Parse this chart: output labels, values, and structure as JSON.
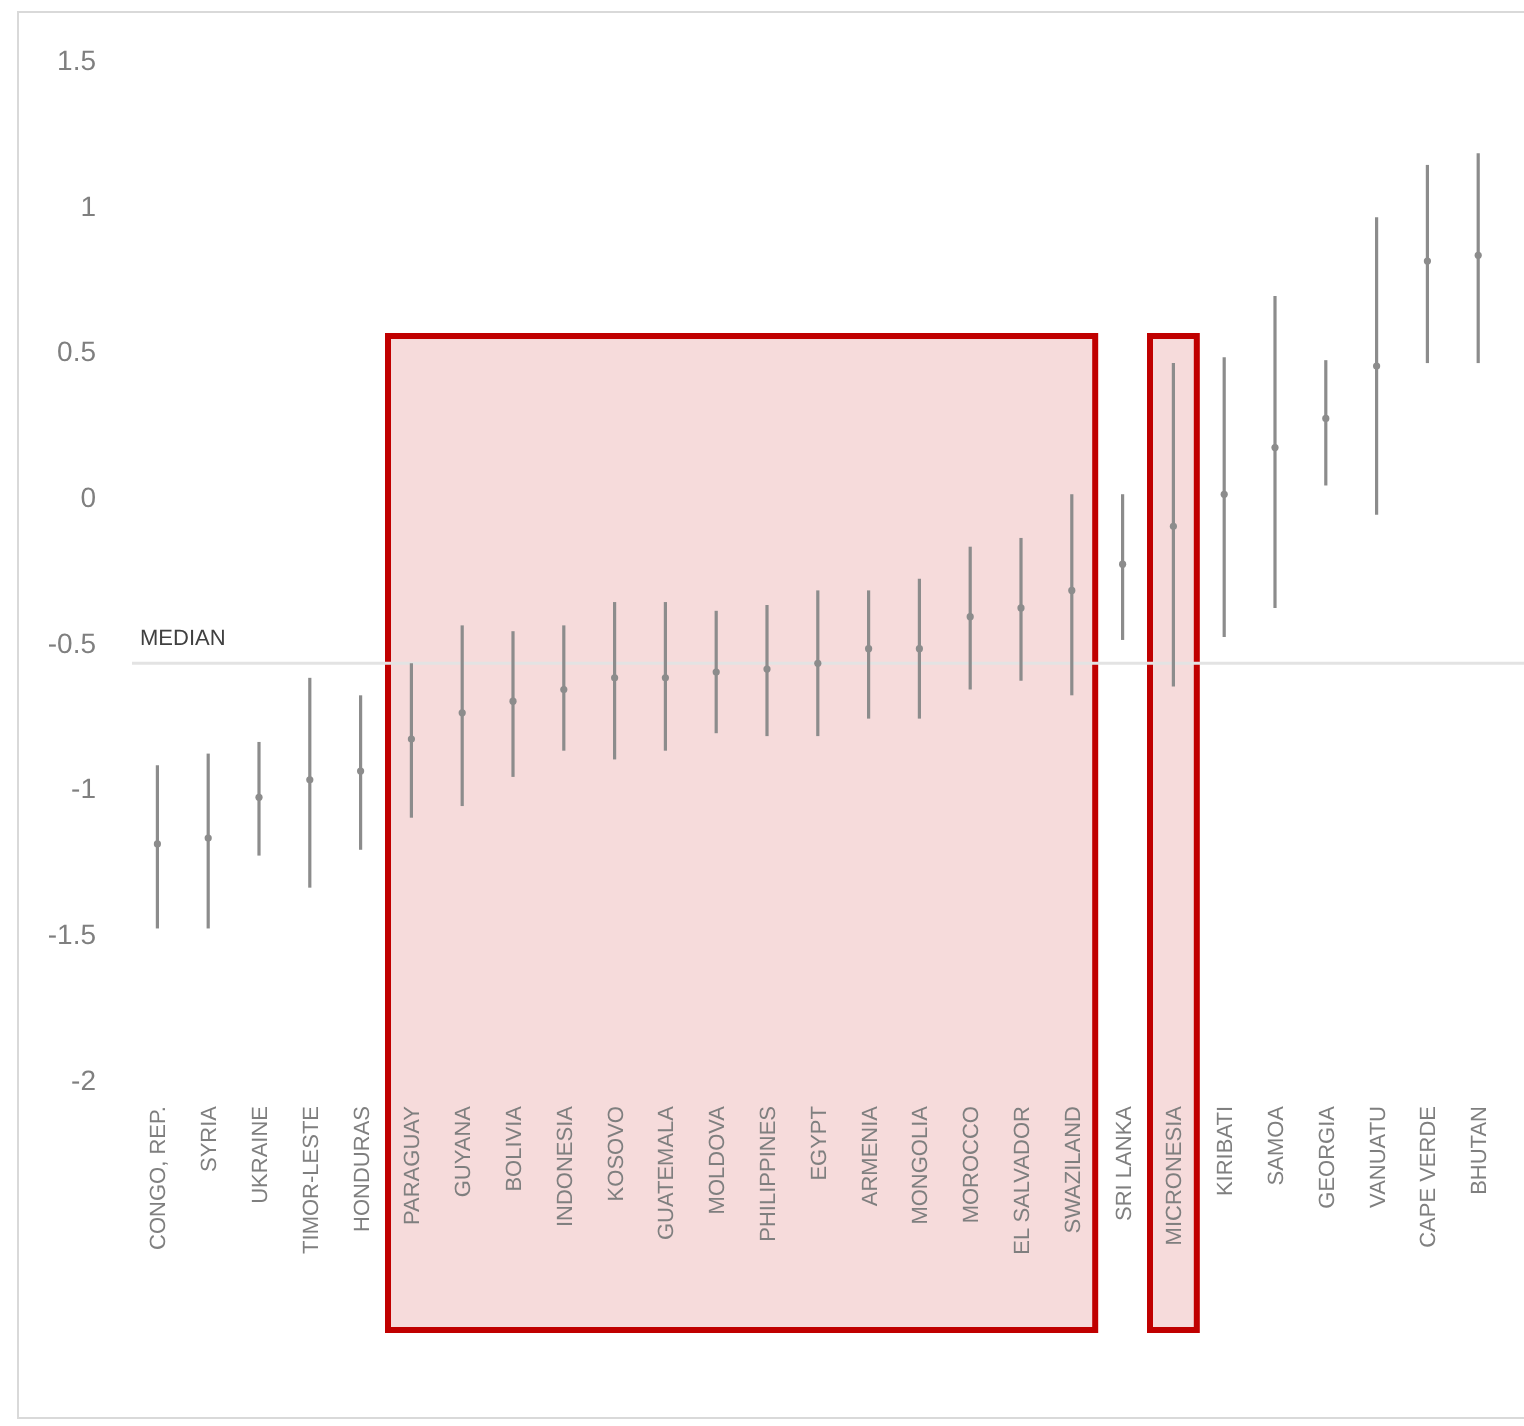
{
  "chart_data": {
    "type": "scatter",
    "categories": [
      "CONGO, REP.",
      "SYRIA",
      "UKRAINE",
      "TIMOR-LESTE",
      "HONDURAS",
      "PARAGUAY",
      "GUYANA",
      "BOLIVIA",
      "INDONESIA",
      "KOSOVO",
      "GUATEMALA",
      "MOLDOVA",
      "PHILIPPINES",
      "EGYPT",
      "ARMENIA",
      "MONGOLIA",
      "MOROCCO",
      "EL SALVADOR",
      "SWAZILAND",
      "SRI LANKA",
      "MICRONESIA",
      "KIRIBATI",
      "SAMOA",
      "GEORGIA",
      "VANUATU",
      "CAPE VERDE",
      "BHUTAN"
    ],
    "series": [
      {
        "color": "#8c8c8c",
        "values": [
          -1.19,
          -1.17,
          -1.03,
          -0.97,
          -0.94,
          -0.83,
          -0.74,
          -0.7,
          -0.66,
          -0.62,
          -0.62,
          -0.6,
          -0.59,
          -0.57,
          -0.52,
          -0.52,
          -0.41,
          -0.38,
          -0.32,
          -0.23,
          -0.1,
          0.01,
          0.17,
          0.27,
          0.45,
          0.81,
          0.83
        ],
        "errors": [
          [
            -1.48,
            -0.92
          ],
          [
            -1.48,
            -0.88
          ],
          [
            -1.23,
            -0.84
          ],
          [
            -1.34,
            -0.62
          ],
          [
            -1.21,
            -0.68
          ],
          [
            -1.1,
            -0.57
          ],
          [
            -1.06,
            -0.44
          ],
          [
            -0.96,
            -0.46
          ],
          [
            -0.87,
            -0.44
          ],
          [
            -0.9,
            -0.36
          ],
          [
            -0.87,
            -0.36
          ],
          [
            -0.81,
            -0.39
          ],
          [
            -0.82,
            -0.37
          ],
          [
            -0.82,
            -0.32
          ],
          [
            -0.76,
            -0.32
          ],
          [
            -0.76,
            -0.28
          ],
          [
            -0.66,
            -0.17
          ],
          [
            -0.63,
            -0.14
          ],
          [
            -0.68,
            0.01
          ],
          [
            -0.49,
            0.01
          ],
          [
            -0.65,
            0.46
          ],
          [
            -0.48,
            0.48
          ],
          [
            -0.38,
            0.69
          ],
          [
            0.04,
            0.47
          ],
          [
            -0.06,
            0.96
          ],
          [
            0.46,
            1.14
          ],
          [
            0.46,
            1.18
          ]
        ]
      }
    ],
    "ylim": [
      -2,
      1.5
    ],
    "yticks": [
      1.5,
      1,
      0.5,
      0,
      -0.5,
      -1,
      -1.5,
      -2
    ],
    "grid": false,
    "marker": "circle",
    "ref_lines": [
      {
        "axis": "y",
        "value": -0.57,
        "label": "MEDIAN",
        "color": "#e3e3e3"
      }
    ],
    "bands": [
      {
        "axis": "x",
        "from": "PARAGUAY",
        "to": "SWAZILAND",
        "color": "#c00000"
      },
      {
        "axis": "x",
        "from": "MICRONESIA",
        "to": "MICRONESIA",
        "color": "#c00000"
      }
    ]
  }
}
